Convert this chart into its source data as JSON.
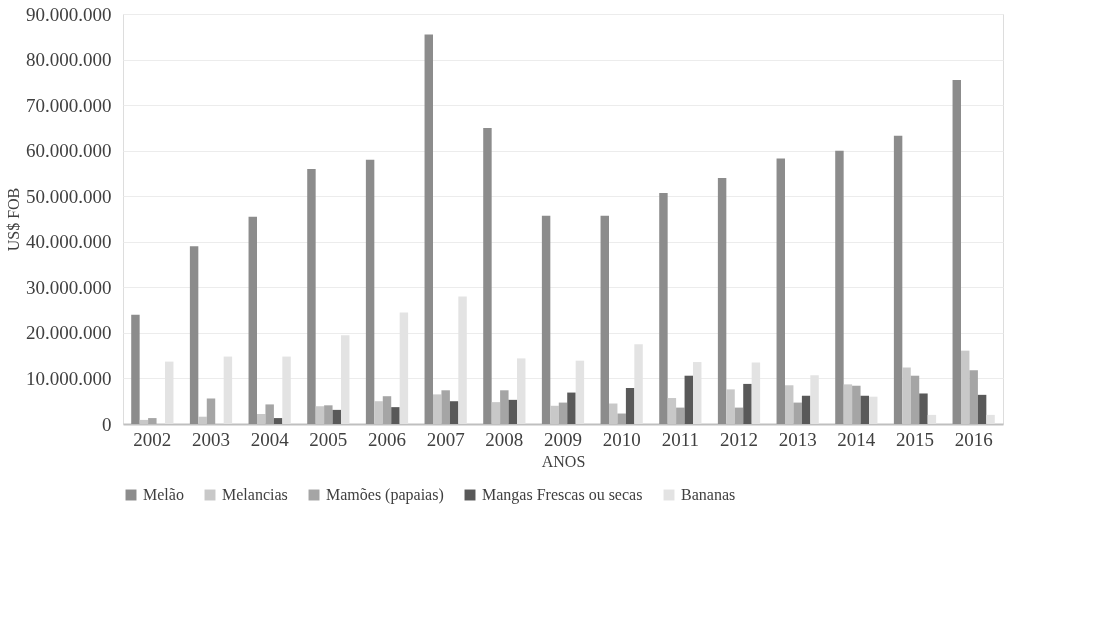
{
  "chart_data": {
    "type": "bar",
    "xlabel": "ANOS",
    "ylabel": "US$ FOB",
    "categories": [
      "2002",
      "2003",
      "2004",
      "2005",
      "2006",
      "2007",
      "2008",
      "2009",
      "2010",
      "2011",
      "2012",
      "2013",
      "2014",
      "2015",
      "2016"
    ],
    "series": [
      {
        "name": "Melão",
        "color": "#8c8c8c",
        "values": [
          24000000,
          39000000,
          45500000,
          56000000,
          58000000,
          85500000,
          65000000,
          45700000,
          45700000,
          50700000,
          54000000,
          58300000,
          60000000,
          63300000,
          75500000
        ]
      },
      {
        "name": "Melancias",
        "color": "#c8c8c8",
        "values": [
          900000,
          1600000,
          2200000,
          3900000,
          5000000,
          6500000,
          4800000,
          4000000,
          4500000,
          5700000,
          7600000,
          8500000,
          8700000,
          12400000,
          16100000
        ]
      },
      {
        "name": "Mamões (papaias)",
        "color": "#a5a5a5",
        "values": [
          1300000,
          5600000,
          4300000,
          4100000,
          6100000,
          7400000,
          7400000,
          4700000,
          2300000,
          3600000,
          3600000,
          4700000,
          8400000,
          10600000,
          11800000
        ]
      },
      {
        "name": "Mangas Frescas ou secas",
        "color": "#595959",
        "values": [
          0,
          0,
          1300000,
          3100000,
          3700000,
          5000000,
          5300000,
          6900000,
          7900000,
          10600000,
          8800000,
          6200000,
          6200000,
          6700000,
          6400000
        ]
      },
      {
        "name": "Bananas",
        "color": "#e3e3e3",
        "values": [
          13700000,
          14800000,
          14800000,
          19500000,
          24500000,
          28000000,
          14400000,
          13900000,
          17500000,
          13600000,
          13500000,
          10700000,
          6000000,
          2000000,
          2000000
        ]
      }
    ],
    "ylim": [
      0,
      90000000
    ],
    "yticks": [
      {
        "value": 0,
        "label": "0"
      },
      {
        "value": 10000000,
        "label": "10.000.000"
      },
      {
        "value": 20000000,
        "label": "20.000.000"
      },
      {
        "value": 30000000,
        "label": "30.000.000"
      },
      {
        "value": 40000000,
        "label": "40.000.000"
      },
      {
        "value": 50000000,
        "label": "50.000.000"
      },
      {
        "value": 60000000,
        "label": "60.000.000"
      },
      {
        "value": 70000000,
        "label": "70.000.000"
      },
      {
        "value": 80000000,
        "label": "80.000.000"
      },
      {
        "value": 90000000,
        "label": "90.000.000"
      }
    ],
    "grid": "y",
    "legend": "bottom"
  }
}
